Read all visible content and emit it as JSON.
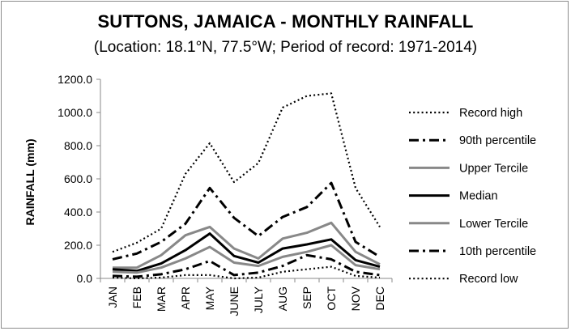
{
  "chart_data": {
    "type": "line",
    "title": "SUTTONS, JAMAICA - MONTHLY RAINFALL",
    "subtitle": "(Location: 18.1°N, 77.5°W; Period of record: 1971-2014)",
    "xlabel": "",
    "ylabel": "RAINFALL (mm)",
    "ylim": [
      0,
      1200
    ],
    "yticks": [
      "0.0",
      "200.0",
      "400.0",
      "600.0",
      "800.0",
      "1000.0",
      "1200.0"
    ],
    "ytick_values": [
      0,
      200,
      400,
      600,
      800,
      1000,
      1200
    ],
    "categories": [
      "JAN",
      "FEB",
      "MAR",
      "APR",
      "MAY",
      "JUNE",
      "JULY",
      "AUG",
      "SEP",
      "OCT",
      "NOV",
      "DEC"
    ],
    "grid": false,
    "legend_position": "right",
    "series": [
      {
        "name": "Record high",
        "style": "dotted",
        "color": "#000000",
        "width": 2.2,
        "values": [
          160,
          215,
          300,
          630,
          815,
          580,
          695,
          1030,
          1100,
          1115,
          545,
          310
        ]
      },
      {
        "name": "90th percentile",
        "style": "dashdot",
        "color": "#000000",
        "width": 3,
        "values": [
          115,
          150,
          220,
          330,
          545,
          365,
          255,
          370,
          430,
          575,
          220,
          130
        ]
      },
      {
        "name": "Upper Tercile",
        "style": "solid",
        "color": "#888888",
        "width": 3,
        "values": [
          65,
          65,
          140,
          260,
          310,
          180,
          120,
          240,
          275,
          335,
          160,
          85
        ]
      },
      {
        "name": "Median",
        "style": "solid",
        "color": "#000000",
        "width": 3,
        "values": [
          55,
          45,
          90,
          170,
          270,
          135,
          95,
          180,
          205,
          235,
          110,
          70
        ]
      },
      {
        "name": "Lower Tercile",
        "style": "solid",
        "color": "#888888",
        "width": 3,
        "values": [
          40,
          35,
          65,
          120,
          190,
          95,
          75,
          130,
          160,
          200,
          80,
          55
        ]
      },
      {
        "name": "10th percentile",
        "style": "dashdot",
        "color": "#000000",
        "width": 3,
        "values": [
          15,
          10,
          25,
          55,
          105,
          20,
          35,
          75,
          140,
          115,
          40,
          20
        ]
      },
      {
        "name": "Record low",
        "style": "dotted",
        "color": "#000000",
        "width": 2.2,
        "values": [
          5,
          0,
          5,
          20,
          20,
          0,
          5,
          40,
          55,
          70,
          15,
          5
        ]
      }
    ]
  }
}
